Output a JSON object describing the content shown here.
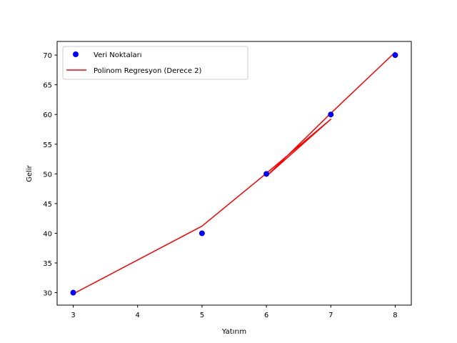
{
  "chart_data": {
    "type": "scatter",
    "title": "",
    "xlabel": "Yatırım",
    "ylabel": "Gelir",
    "xlim": [
      2.75,
      8.25
    ],
    "ylim": [
      27.9,
      72.3
    ],
    "xticks": [
      3,
      4,
      5,
      6,
      7,
      8
    ],
    "yticks": [
      30,
      35,
      40,
      45,
      50,
      55,
      60,
      65,
      70
    ],
    "grid": false,
    "legend_position": "top-left",
    "series": [
      {
        "name": "Veri Noktaları",
        "kind": "scatter",
        "color": "#0000ff",
        "x": [
          3,
          5,
          6,
          7,
          8
        ],
        "y": [
          30,
          40,
          50,
          60,
          70
        ]
      },
      {
        "name": "Polinom Regresyon (Derece 2)",
        "kind": "line",
        "color": "#ff0000",
        "x": [
          3,
          5,
          6,
          7,
          6,
          7,
          8
        ],
        "y": [
          29.8,
          41.2,
          50.1,
          59.2,
          49.6,
          60.2,
          70.5
        ]
      }
    ]
  }
}
